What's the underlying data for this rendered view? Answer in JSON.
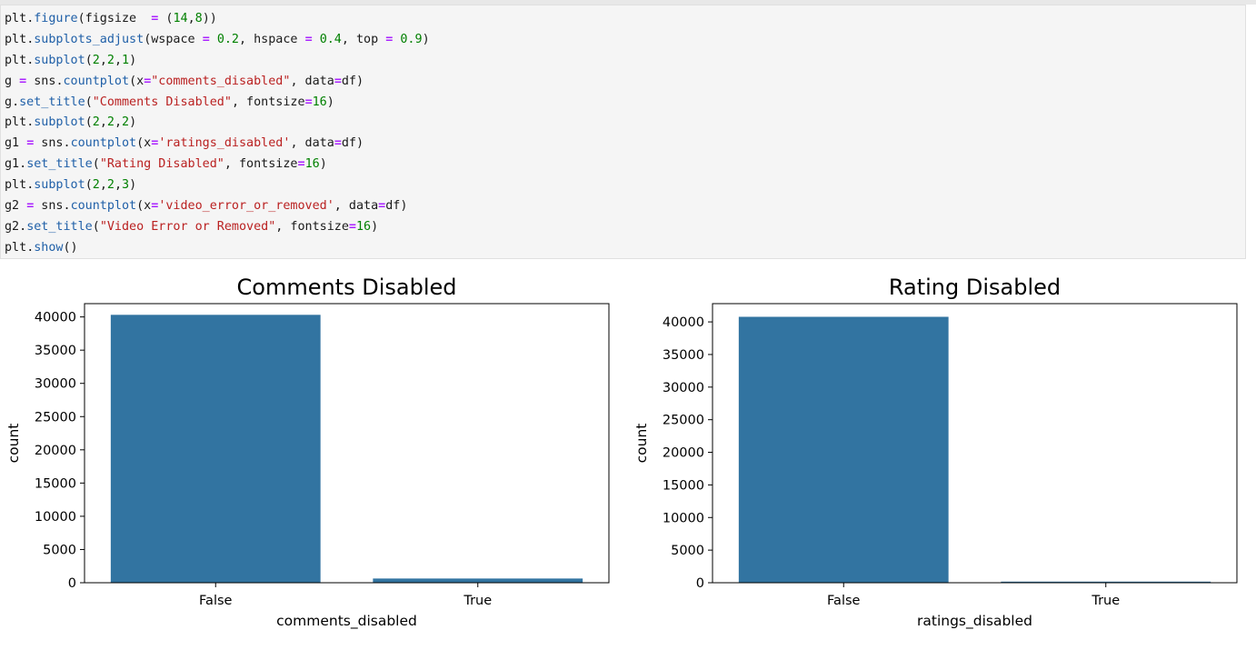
{
  "code_cell": {
    "lines": [
      [
        {
          "t": "plt",
          "k": "var"
        },
        {
          "t": ".",
          "k": "p"
        },
        {
          "t": "figure",
          "k": "attr"
        },
        {
          "t": "(figsize  ",
          "k": "p"
        },
        {
          "t": "=",
          "k": "op"
        },
        {
          "t": " (",
          "k": "p"
        },
        {
          "t": "14",
          "k": "num"
        },
        {
          "t": ",",
          "k": "p"
        },
        {
          "t": "8",
          "k": "num"
        },
        {
          "t": "))",
          "k": "p"
        }
      ],
      [
        {
          "t": "plt",
          "k": "var"
        },
        {
          "t": ".",
          "k": "p"
        },
        {
          "t": "subplots_adjust",
          "k": "attr"
        },
        {
          "t": "(wspace ",
          "k": "p"
        },
        {
          "t": "=",
          "k": "op"
        },
        {
          "t": " ",
          "k": "p"
        },
        {
          "t": "0.2",
          "k": "num"
        },
        {
          "t": ", hspace ",
          "k": "p"
        },
        {
          "t": "=",
          "k": "op"
        },
        {
          "t": " ",
          "k": "p"
        },
        {
          "t": "0.4",
          "k": "num"
        },
        {
          "t": ", top ",
          "k": "p"
        },
        {
          "t": "=",
          "k": "op"
        },
        {
          "t": " ",
          "k": "p"
        },
        {
          "t": "0.9",
          "k": "num"
        },
        {
          "t": ")",
          "k": "p"
        }
      ],
      [
        {
          "t": "plt",
          "k": "var"
        },
        {
          "t": ".",
          "k": "p"
        },
        {
          "t": "subplot",
          "k": "attr"
        },
        {
          "t": "(",
          "k": "p"
        },
        {
          "t": "2",
          "k": "num"
        },
        {
          "t": ",",
          "k": "p"
        },
        {
          "t": "2",
          "k": "num"
        },
        {
          "t": ",",
          "k": "p"
        },
        {
          "t": "1",
          "k": "num"
        },
        {
          "t": ")",
          "k": "p"
        }
      ],
      [
        {
          "t": "g ",
          "k": "var"
        },
        {
          "t": "=",
          "k": "op"
        },
        {
          "t": " sns",
          "k": "var"
        },
        {
          "t": ".",
          "k": "p"
        },
        {
          "t": "countplot",
          "k": "attr"
        },
        {
          "t": "(x",
          "k": "p"
        },
        {
          "t": "=",
          "k": "op"
        },
        {
          "t": "\"comments_disabled\"",
          "k": "str"
        },
        {
          "t": ", data",
          "k": "p"
        },
        {
          "t": "=",
          "k": "op"
        },
        {
          "t": "df)",
          "k": "p"
        }
      ],
      [
        {
          "t": "g",
          "k": "var"
        },
        {
          "t": ".",
          "k": "p"
        },
        {
          "t": "set_title",
          "k": "attr"
        },
        {
          "t": "(",
          "k": "p"
        },
        {
          "t": "\"Comments Disabled\"",
          "k": "str"
        },
        {
          "t": ", fontsize",
          "k": "p"
        },
        {
          "t": "=",
          "k": "op"
        },
        {
          "t": "16",
          "k": "num"
        },
        {
          "t": ")",
          "k": "p"
        }
      ],
      [
        {
          "t": "plt",
          "k": "var"
        },
        {
          "t": ".",
          "k": "p"
        },
        {
          "t": "subplot",
          "k": "attr"
        },
        {
          "t": "(",
          "k": "p"
        },
        {
          "t": "2",
          "k": "num"
        },
        {
          "t": ",",
          "k": "p"
        },
        {
          "t": "2",
          "k": "num"
        },
        {
          "t": ",",
          "k": "p"
        },
        {
          "t": "2",
          "k": "num"
        },
        {
          "t": ")",
          "k": "p"
        }
      ],
      [
        {
          "t": "g1 ",
          "k": "var"
        },
        {
          "t": "=",
          "k": "op"
        },
        {
          "t": " sns",
          "k": "var"
        },
        {
          "t": ".",
          "k": "p"
        },
        {
          "t": "countplot",
          "k": "attr"
        },
        {
          "t": "(x",
          "k": "p"
        },
        {
          "t": "=",
          "k": "op"
        },
        {
          "t": "'ratings_disabled'",
          "k": "str"
        },
        {
          "t": ", data",
          "k": "p"
        },
        {
          "t": "=",
          "k": "op"
        },
        {
          "t": "df)",
          "k": "p"
        }
      ],
      [
        {
          "t": "g1",
          "k": "var"
        },
        {
          "t": ".",
          "k": "p"
        },
        {
          "t": "set_title",
          "k": "attr"
        },
        {
          "t": "(",
          "k": "p"
        },
        {
          "t": "\"Rating Disabled\"",
          "k": "str"
        },
        {
          "t": ", fontsize",
          "k": "p"
        },
        {
          "t": "=",
          "k": "op"
        },
        {
          "t": "16",
          "k": "num"
        },
        {
          "t": ")",
          "k": "p"
        }
      ],
      [
        {
          "t": "plt",
          "k": "var"
        },
        {
          "t": ".",
          "k": "p"
        },
        {
          "t": "subplot",
          "k": "attr"
        },
        {
          "t": "(",
          "k": "p"
        },
        {
          "t": "2",
          "k": "num"
        },
        {
          "t": ",",
          "k": "p"
        },
        {
          "t": "2",
          "k": "num"
        },
        {
          "t": ",",
          "k": "p"
        },
        {
          "t": "3",
          "k": "num"
        },
        {
          "t": ")",
          "k": "p"
        }
      ],
      [
        {
          "t": "g2 ",
          "k": "var"
        },
        {
          "t": "=",
          "k": "op"
        },
        {
          "t": " sns",
          "k": "var"
        },
        {
          "t": ".",
          "k": "p"
        },
        {
          "t": "countplot",
          "k": "attr"
        },
        {
          "t": "(x",
          "k": "p"
        },
        {
          "t": "=",
          "k": "op"
        },
        {
          "t": "'video_error_or_removed'",
          "k": "str"
        },
        {
          "t": ", data",
          "k": "p"
        },
        {
          "t": "=",
          "k": "op"
        },
        {
          "t": "df)",
          "k": "p"
        }
      ],
      [
        {
          "t": "g2",
          "k": "var"
        },
        {
          "t": ".",
          "k": "p"
        },
        {
          "t": "set_title",
          "k": "attr"
        },
        {
          "t": "(",
          "k": "p"
        },
        {
          "t": "\"Video Error or Removed\"",
          "k": "str"
        },
        {
          "t": ", fontsize",
          "k": "p"
        },
        {
          "t": "=",
          "k": "op"
        },
        {
          "t": "16",
          "k": "num"
        },
        {
          "t": ")",
          "k": "p"
        }
      ],
      [
        {
          "t": "plt",
          "k": "var"
        },
        {
          "t": ".",
          "k": "p"
        },
        {
          "t": "show",
          "k": "attr"
        },
        {
          "t": "()",
          "k": "p"
        }
      ]
    ]
  },
  "colors": {
    "bar": "#3274a1",
    "axis": "#000000",
    "code_background": "#f5f5f5"
  },
  "chart_data": [
    {
      "type": "bar",
      "title": "Comments Disabled",
      "xlabel": "comments_disabled",
      "ylabel": "count",
      "categories": [
        "False",
        "True"
      ],
      "values": [
        40316,
        633
      ],
      "ylim": [
        0,
        42000
      ],
      "yticks": [
        0,
        5000,
        10000,
        15000,
        20000,
        25000,
        30000,
        35000,
        40000
      ],
      "grid": false
    },
    {
      "type": "bar",
      "title": "Rating Disabled",
      "xlabel": "ratings_disabled",
      "ylabel": "count",
      "categories": [
        "False",
        "True"
      ],
      "values": [
        40780,
        169
      ],
      "ylim": [
        0,
        42800
      ],
      "yticks": [
        0,
        5000,
        10000,
        15000,
        20000,
        25000,
        30000,
        35000,
        40000
      ],
      "grid": false
    }
  ]
}
